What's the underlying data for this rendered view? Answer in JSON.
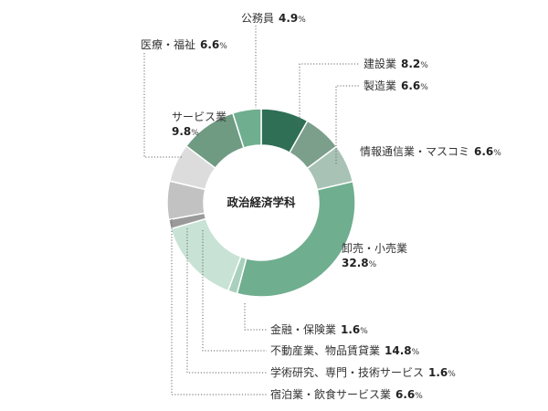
{
  "chart_data": {
    "type": "pie",
    "title": "政治経済学科",
    "unit": "%",
    "slices": [
      {
        "label": "建設業",
        "value": 8.2,
        "color": "#2f6f56"
      },
      {
        "label": "製造業",
        "value": 6.6,
        "color": "#7b9f8b"
      },
      {
        "label": "情報通信業・マスコミ",
        "value": 6.6,
        "color": "#a8c3b6"
      },
      {
        "label": "卸売・小売業",
        "value": 32.8,
        "color": "#6fae8f"
      },
      {
        "label": "金融・保険業",
        "value": 1.6,
        "color": "#a9d0bd"
      },
      {
        "label": "不動産業、物品賃貸業",
        "value": 14.8,
        "color": "#c8e3d5"
      },
      {
        "label": "学術研究、専門・技術サービス",
        "value": 1.6,
        "color": "#9a9a9a"
      },
      {
        "label": "宿泊業・飲食サービス業",
        "value": 6.6,
        "color": "#c2c2c2"
      },
      {
        "label": "医療・福祉",
        "value": 6.6,
        "color": "#dcdcdc"
      },
      {
        "label": "サービス業",
        "value": 9.8,
        "color": "#6f9b83"
      },
      {
        "label": "公務員",
        "value": 4.9,
        "color": "#6fae8f"
      }
    ]
  }
}
